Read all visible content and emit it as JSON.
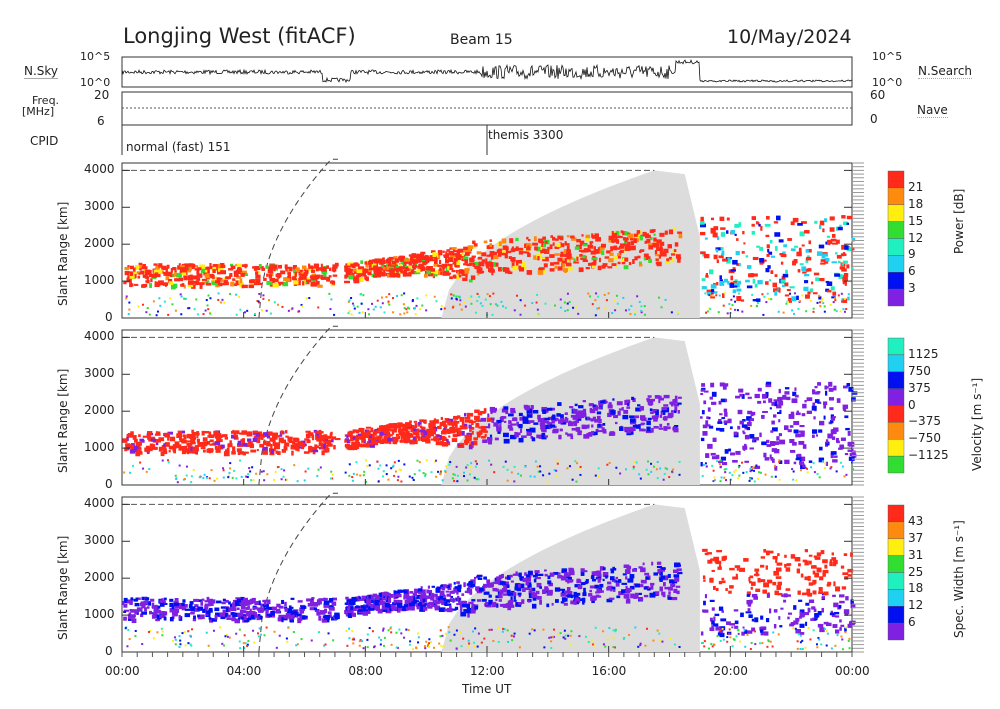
{
  "header": {
    "title": "Longjing West (fitACF)",
    "beam": "Beam 15",
    "date": "10/May/2024"
  },
  "top_panels": {
    "nsky_label": "N.Sky",
    "nsearch_label": "N.Search",
    "nsky_ticks": [
      "10^5",
      "10^0"
    ],
    "freq_label": "Freq.",
    "freq_unit": "[MHz]",
    "freq_ticks": [
      "20",
      "6"
    ],
    "nave_label": "Nave",
    "nave_ticks": [
      "60",
      "0"
    ],
    "cpid_label": "CPID",
    "cpid_modes": [
      {
        "label": "normal (fast) 151",
        "start_hour": 0
      },
      {
        "label": "themis 3300",
        "start_hour": 12
      }
    ]
  },
  "chart_data": {
    "type": "heatmap",
    "xlabel": "Time UT",
    "xticks": [
      "00:00",
      "04:00",
      "08:00",
      "12:00",
      "16:00",
      "20:00",
      "00:00"
    ],
    "xlim": [
      0,
      24
    ],
    "ylabel": "Slant Range [km]",
    "yticks": [
      "0",
      "1000",
      "2000",
      "3000",
      "4000"
    ],
    "ylim": [
      0,
      4200
    ],
    "panels": [
      {
        "name": "Power",
        "colorbar_label": "Power [dB]",
        "colorbar_ticks": [
          "21",
          "18",
          "15",
          "12",
          "9",
          "6",
          "3"
        ],
        "colors": [
          "#ff2a1a",
          "#ff8a10",
          "#ffee10",
          "#30dd30",
          "#20f0c0",
          "#20d0f0",
          "#0010f0",
          "#8020e0"
        ]
      },
      {
        "name": "Velocity",
        "colorbar_label": "Velocity [m s⁻¹]",
        "colorbar_ticks": [
          "1125",
          "750",
          "375",
          "0",
          "−375",
          "−750",
          "−1125"
        ],
        "colors": [
          "#20f0c0",
          "#20d0f0",
          "#0010f0",
          "#8020e0",
          "#ff2a1a",
          "#ff8a10",
          "#ffee10",
          "#30dd30"
        ]
      },
      {
        "name": "Spec. Width",
        "colorbar_label": "Spec. Width [m s⁻¹]",
        "colorbar_ticks": [
          "43",
          "37",
          "31",
          "25",
          "18",
          "12",
          "6"
        ],
        "colors": [
          "#ff2a1a",
          "#ff8a10",
          "#ffee10",
          "#30dd30",
          "#20f0c0",
          "#20d0f0",
          "#0010f0",
          "#8020e0"
        ]
      }
    ],
    "echo_regions": [
      {
        "t": [
          0,
          7
        ],
        "range": [
          900,
          1500
        ]
      },
      {
        "t": [
          7.3,
          11.5
        ],
        "range": [
          1000,
          2000
        ]
      },
      {
        "t": [
          11.5,
          18.3
        ],
        "range": [
          1200,
          2500
        ]
      },
      {
        "t": [
          19,
          24
        ],
        "range": [
          500,
          2800
        ]
      }
    ],
    "ground_scatter_region": {
      "t": [
        10.5,
        19
      ],
      "range": [
        0,
        4000
      ]
    }
  }
}
